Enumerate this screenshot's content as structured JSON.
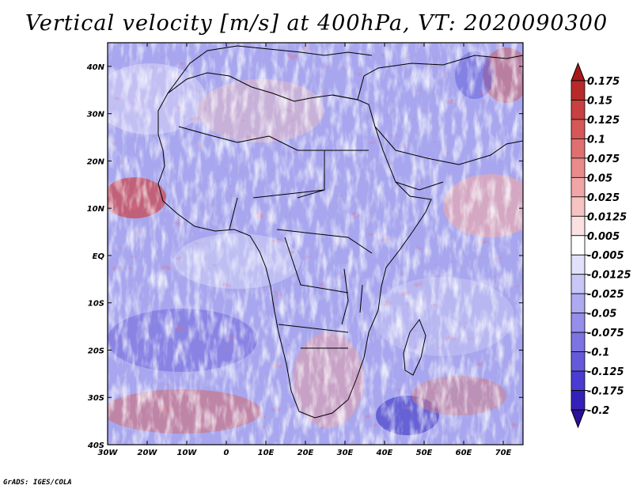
{
  "title": "Vertical velocity [m/s] at 400hPa, VT: 2020090300",
  "credit": "GrADS: IGES/COLA",
  "map": {
    "lon_range": [
      -30,
      75
    ],
    "lat_range": [
      -40,
      45
    ],
    "lon_ticks": [
      {
        "value": -30,
        "label": "30W"
      },
      {
        "value": -20,
        "label": "20W"
      },
      {
        "value": -10,
        "label": "10W"
      },
      {
        "value": 0,
        "label": "0"
      },
      {
        "value": 10,
        "label": "10E"
      },
      {
        "value": 20,
        "label": "20E"
      },
      {
        "value": 30,
        "label": "30E"
      },
      {
        "value": 40,
        "label": "40E"
      },
      {
        "value": 50,
        "label": "50E"
      },
      {
        "value": 60,
        "label": "60E"
      },
      {
        "value": 70,
        "label": "70E"
      }
    ],
    "lat_ticks": [
      {
        "value": 40,
        "label": "40N"
      },
      {
        "value": 30,
        "label": "30N"
      },
      {
        "value": 20,
        "label": "20N"
      },
      {
        "value": 10,
        "label": "10N"
      },
      {
        "value": 0,
        "label": "EQ"
      },
      {
        "value": -10,
        "label": "10S"
      },
      {
        "value": -20,
        "label": "20S"
      },
      {
        "value": -30,
        "label": "30S"
      },
      {
        "value": -40,
        "label": "40S"
      }
    ]
  },
  "colorbar": {
    "colors": [
      "#2b0f9a",
      "#3422b8",
      "#4a3cd0",
      "#6559db",
      "#7d74e2",
      "#958eea",
      "#aeaaf0",
      "#c8c6f6",
      "#e2e1fb",
      "#ffffff",
      "#fbe1e1",
      "#f6c3c3",
      "#f0a6a6",
      "#e98b8b",
      "#e07070",
      "#d55757",
      "#c84040",
      "#b82a2a",
      "#a61a1a"
    ],
    "labels": [
      "0.175",
      "0.15",
      "0.125",
      "0.1",
      "0.075",
      "0.05",
      "0.025",
      "0.0125",
      "0.005",
      "-0.005",
      "-0.0125",
      "-0.025",
      "-0.05",
      "-0.075",
      "-0.1",
      "-0.125",
      "-0.175",
      "-0.2"
    ]
  }
}
